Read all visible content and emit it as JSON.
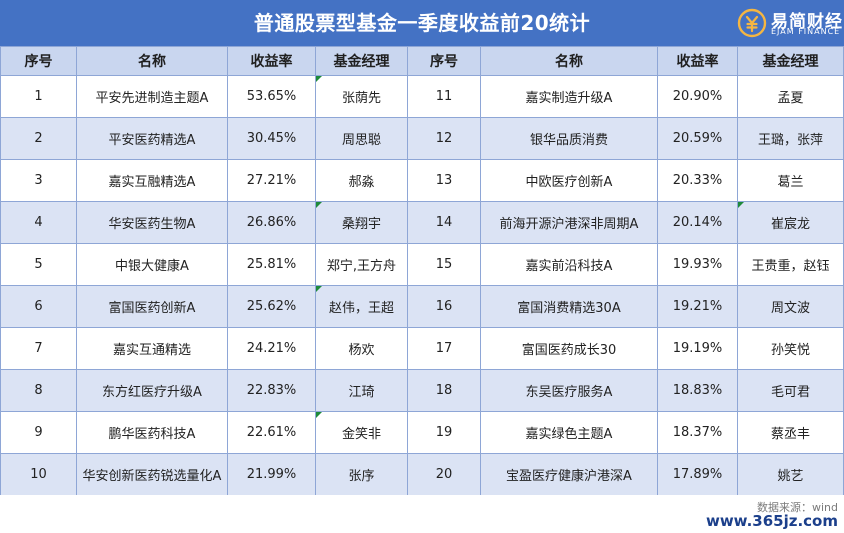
{
  "title": "普通股票型基金一季度收益前20统计",
  "logo": {
    "cn": "易简财经",
    "en": "EJAM FINANCE"
  },
  "headers": [
    "序号",
    "名称",
    "收益率",
    "基金经理",
    "序号",
    "名称",
    "收益率",
    "基金经理"
  ],
  "rows": [
    {
      "no1": "1",
      "name1": "平安先进制造主题A",
      "ret1": "53.65%",
      "mgr1": "张荫先",
      "no2": "11",
      "name2": "嘉实制造升级A",
      "ret2": "20.90%",
      "mgr2": "孟夏"
    },
    {
      "no1": "2",
      "name1": "平安医药精选A",
      "ret1": "30.45%",
      "mgr1": "周思聪",
      "no2": "12",
      "name2": "银华品质消费",
      "ret2": "20.59%",
      "mgr2": "王璐，张萍"
    },
    {
      "no1": "3",
      "name1": "嘉实互融精选A",
      "ret1": "27.21%",
      "mgr1": "郝淼",
      "no2": "13",
      "name2": "中欧医疗创新A",
      "ret2": "20.33%",
      "mgr2": "葛兰"
    },
    {
      "no1": "4",
      "name1": "华安医药生物A",
      "ret1": "26.86%",
      "mgr1": "桑翔宇",
      "no2": "14",
      "name2": "前海开源沪港深非周期A",
      "ret2": "20.14%",
      "mgr2": "崔宸龙"
    },
    {
      "no1": "5",
      "name1": "中银大健康A",
      "ret1": "25.81%",
      "mgr1": "郑宁,王方舟",
      "no2": "15",
      "name2": "嘉实前沿科技A",
      "ret2": "19.93%",
      "mgr2": "王贵重，赵钰"
    },
    {
      "no1": "6",
      "name1": "富国医药创新A",
      "ret1": "25.62%",
      "mgr1": "赵伟，王超",
      "no2": "16",
      "name2": "富国消费精选30A",
      "ret2": "19.21%",
      "mgr2": "周文波"
    },
    {
      "no1": "7",
      "name1": "嘉实互通精选",
      "ret1": "24.21%",
      "mgr1": "杨欢",
      "no2": "17",
      "name2": "富国医药成长30",
      "ret2": "19.19%",
      "mgr2": "孙笑悦"
    },
    {
      "no1": "8",
      "name1": "东方红医疗升级A",
      "ret1": "22.83%",
      "mgr1": "江琦",
      "no2": "18",
      "name2": "东吴医疗服务A",
      "ret2": "18.83%",
      "mgr2": "毛可君"
    },
    {
      "no1": "9",
      "name1": "鹏华医药科技A",
      "ret1": "22.61%",
      "mgr1": "金笑非",
      "no2": "19",
      "name2": "嘉实绿色主题A",
      "ret2": "18.37%",
      "mgr2": "蔡丞丰"
    },
    {
      "no1": "10",
      "name1": "华安创新医药锐选量化A",
      "ret1": "21.99%",
      "mgr1": "张序",
      "no2": "20",
      "name2": "宝盈医疗健康沪港深A",
      "ret2": "17.89%",
      "mgr2": "姚艺"
    }
  ],
  "source": "数据来源：wind",
  "watermark": "www.365jz.com",
  "colors": {
    "header_bar": "#4472c4",
    "column_header": "#c9d6ef",
    "band": "#dbe3f4",
    "border": "#8ea6d6",
    "note_flag": "#1e8a3a"
  }
}
